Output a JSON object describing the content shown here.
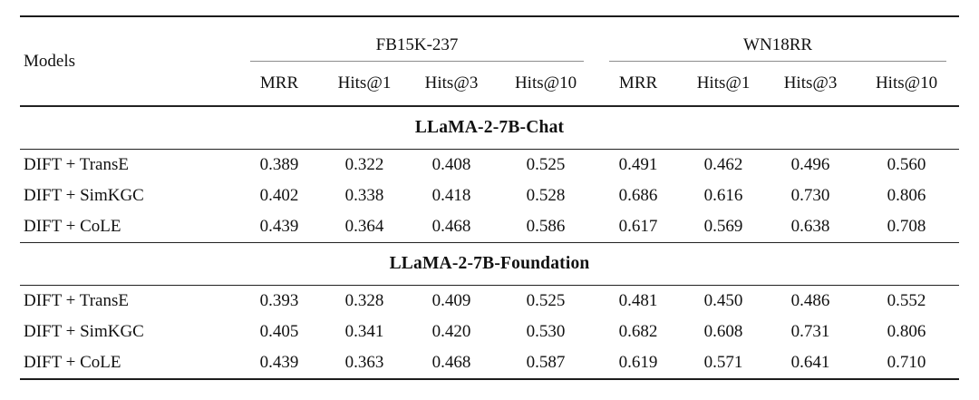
{
  "table": {
    "header": {
      "models_label": "Models",
      "groups": [
        {
          "label": "FB15K-237",
          "metrics": [
            "MRR",
            "Hits@1",
            "Hits@3",
            "Hits@10"
          ]
        },
        {
          "label": "WN18RR",
          "metrics": [
            "MRR",
            "Hits@1",
            "Hits@3",
            "Hits@10"
          ]
        }
      ]
    },
    "sections": [
      {
        "title": "LLaMA-2-7B-Chat",
        "rows": [
          {
            "model": "DIFT + TransE",
            "values": [
              "0.389",
              "0.322",
              "0.408",
              "0.525",
              "0.491",
              "0.462",
              "0.496",
              "0.560"
            ]
          },
          {
            "model": "DIFT + SimKGC",
            "values": [
              "0.402",
              "0.338",
              "0.418",
              "0.528",
              "0.686",
              "0.616",
              "0.730",
              "0.806"
            ]
          },
          {
            "model": "DIFT + CoLE",
            "values": [
              "0.439",
              "0.364",
              "0.468",
              "0.586",
              "0.617",
              "0.569",
              "0.638",
              "0.708"
            ]
          }
        ]
      },
      {
        "title": "LLaMA-2-7B-Foundation",
        "rows": [
          {
            "model": "DIFT + TransE",
            "values": [
              "0.393",
              "0.328",
              "0.409",
              "0.525",
              "0.481",
              "0.450",
              "0.486",
              "0.552"
            ]
          },
          {
            "model": "DIFT + SimKGC",
            "values": [
              "0.405",
              "0.341",
              "0.420",
              "0.530",
              "0.682",
              "0.608",
              "0.731",
              "0.806"
            ]
          },
          {
            "model": "DIFT + CoLE",
            "values": [
              "0.439",
              "0.363",
              "0.468",
              "0.587",
              "0.619",
              "0.571",
              "0.641",
              "0.710"
            ]
          }
        ]
      }
    ],
    "colors": {
      "background": "#ffffff",
      "text": "#111111",
      "heavy_rule": "#1c1c1c",
      "mid_rule": "#222222",
      "cmidrule": "#8d8d8d"
    }
  }
}
